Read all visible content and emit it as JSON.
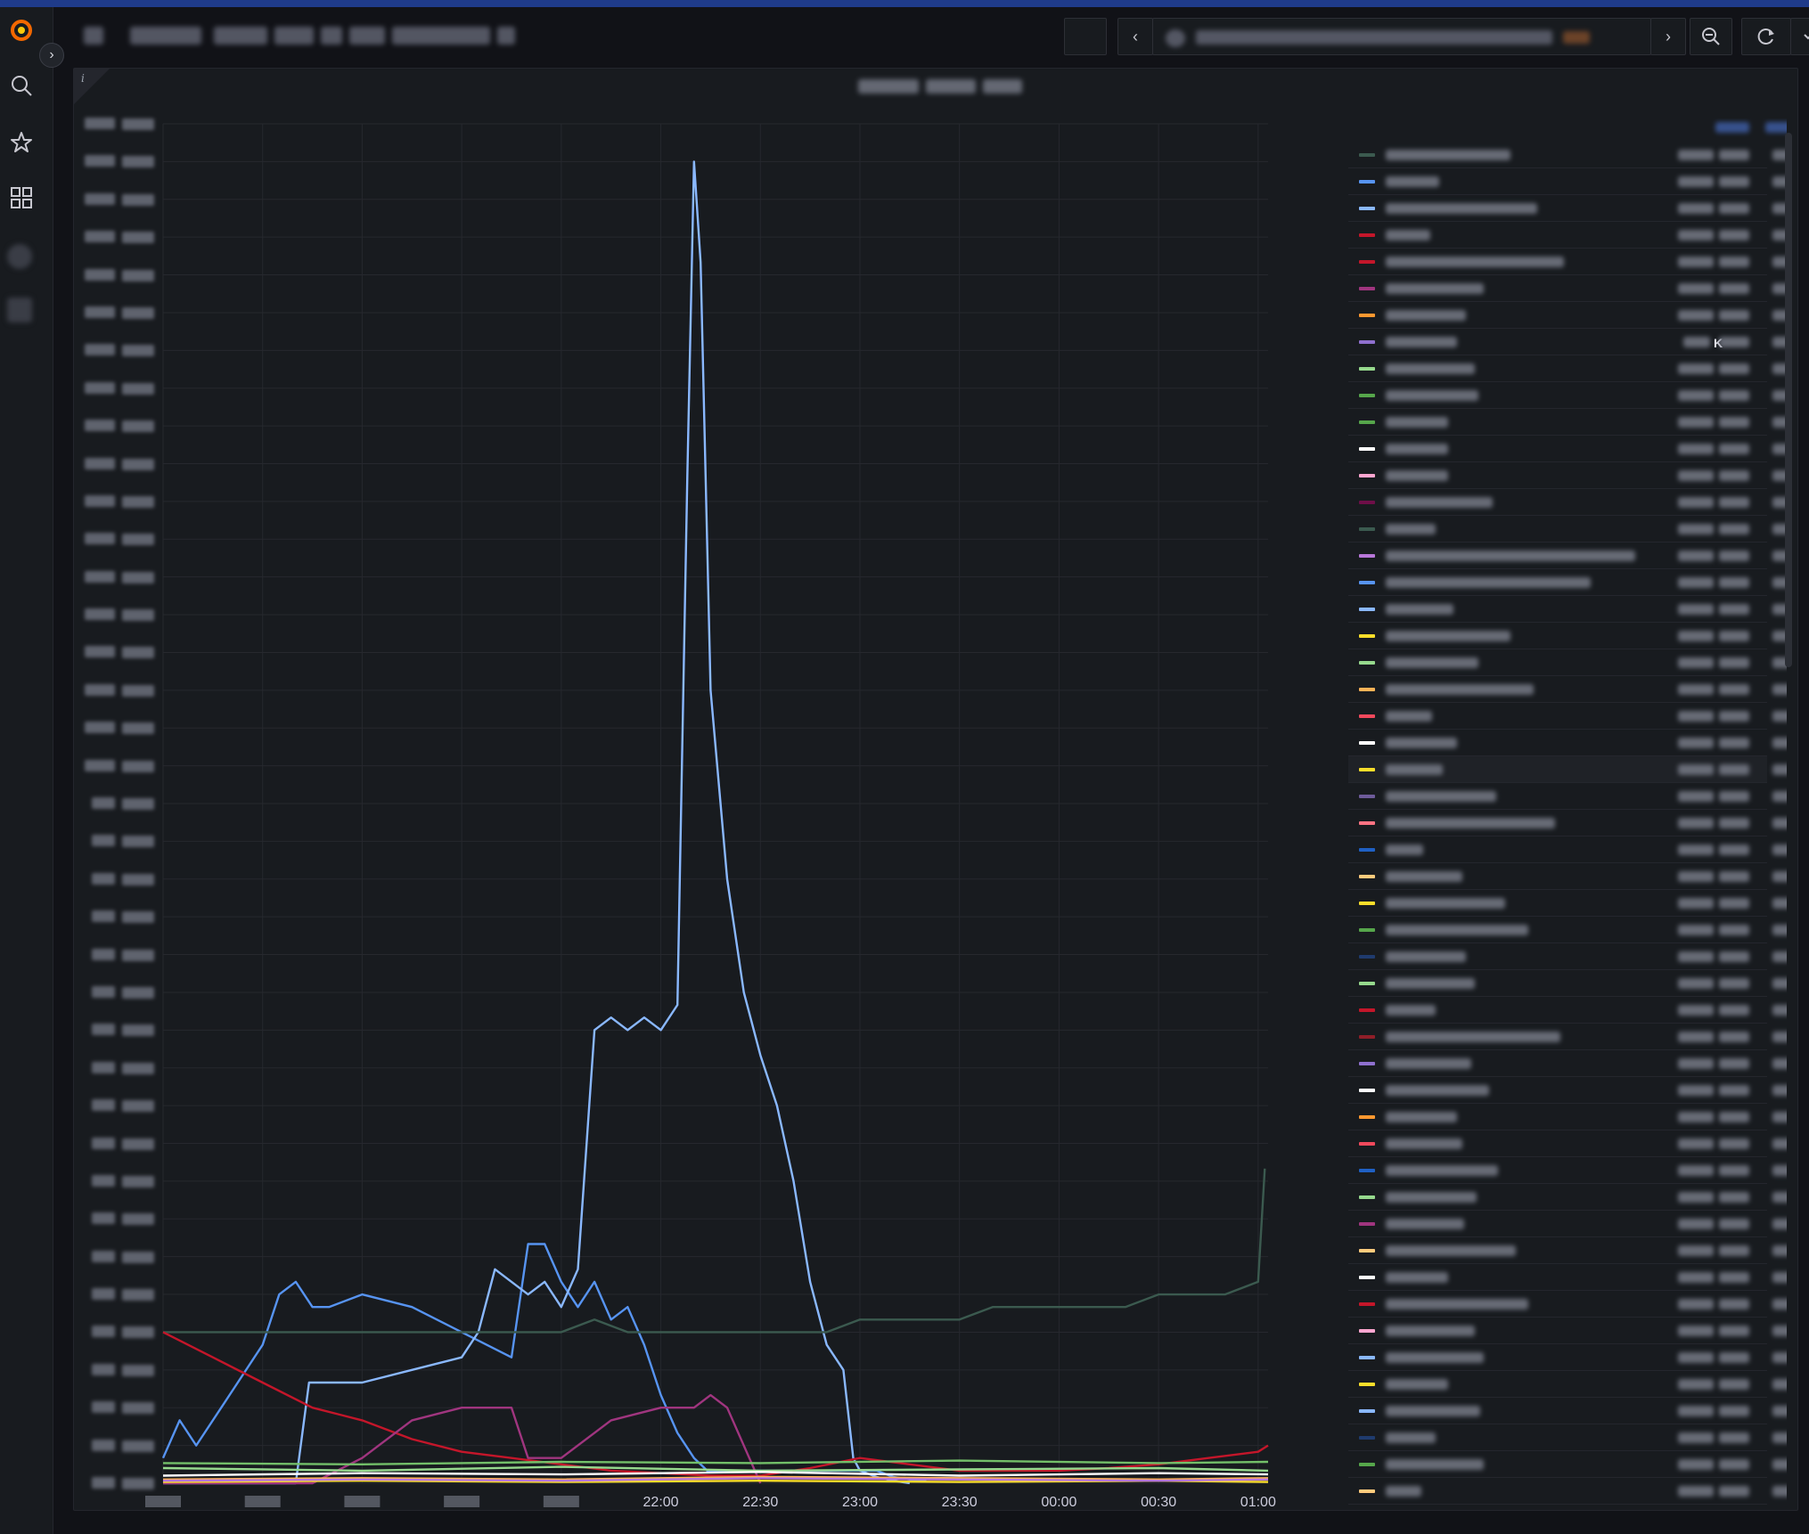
{
  "app": {
    "logo_icon": "grafana-logo-icon"
  },
  "sidebar": {
    "expand_icon": "chevron-right-icon",
    "items": [
      {
        "icon": "search-icon"
      },
      {
        "icon": "star-icon"
      },
      {
        "icon": "dashboards-grid-icon"
      }
    ]
  },
  "toolbar": {
    "nav_prev_icon": "chevron-left-icon",
    "nav_next_icon": "chevron-right-icon",
    "zoom_out_icon": "zoom-out-icon",
    "refresh_icon": "refresh-icon",
    "refresh_menu_icon": "chevron-down-icon",
    "tv_icon": "monitor-icon"
  },
  "panel": {
    "info_label": "i"
  },
  "chart_data": {
    "type": "line",
    "x_tick_labels": [
      "22:00",
      "22:30",
      "23:00",
      "23:30",
      "00:00",
      "00:30",
      "01:00"
    ],
    "x_range": [
      "19:30",
      "01:03"
    ],
    "grid": true,
    "legend_placement": "right",
    "series": [
      {
        "color": "#5794f2",
        "x": [
          "19:30",
          "19:35",
          "19:40",
          "19:50",
          "20:00",
          "20:05",
          "20:10",
          "20:15",
          "20:20",
          "20:30",
          "20:45",
          "21:00",
          "21:15",
          "21:20",
          "21:25",
          "21:30",
          "21:35",
          "21:40",
          "21:45",
          "21:50",
          "21:55",
          "22:00",
          "22:05",
          "22:10",
          "22:14",
          "22:15",
          "22:16",
          "22:17",
          "22:18",
          "22:19",
          "22:20",
          "22:25",
          "22:28",
          "22:32",
          "22:36",
          "22:40",
          "22:45",
          "22:50",
          "22:55",
          "22:57",
          "22:58",
          "23:00",
          "23:05",
          "23:10",
          "23:15",
          "23:20"
        ],
        "y": [
          2,
          5,
          3,
          7,
          11,
          15,
          16,
          14,
          14,
          15,
          14,
          12,
          10,
          19,
          19,
          16,
          14,
          16,
          13,
          14,
          11,
          7,
          4,
          2,
          1,
          1,
          1,
          1,
          1,
          1,
          1,
          1,
          1,
          1,
          1,
          1,
          1,
          1,
          1,
          1,
          1,
          1,
          1,
          0.5,
          0.3,
          0.2
        ]
      },
      {
        "color": "#8ab8ff",
        "x": [
          "19:30",
          "20:10",
          "20:14",
          "20:30",
          "20:45",
          "21:00",
          "21:05",
          "21:10",
          "21:15",
          "21:20",
          "21:25",
          "21:30",
          "21:35",
          "21:40",
          "21:45",
          "21:50",
          "21:55",
          "22:00",
          "22:05",
          "22:08",
          "22:10",
          "22:12",
          "22:15",
          "22:20",
          "22:25",
          "22:30",
          "22:35",
          "22:40",
          "22:45",
          "22:50",
          "22:55",
          "22:58",
          "23:00",
          "23:05",
          "23:10",
          "23:15"
        ],
        "y": [
          0,
          0,
          8,
          8,
          9,
          10,
          12,
          17,
          16,
          15,
          16,
          14,
          17,
          36,
          37,
          36,
          37,
          36,
          38,
          80,
          105,
          97,
          63,
          48,
          39,
          34,
          30,
          24,
          16,
          11,
          9,
          2,
          1,
          0.5,
          0.2,
          0
        ]
      },
      {
        "color": "#3b5a4f",
        "x": [
          "19:30",
          "19:40",
          "19:50",
          "20:00",
          "20:10",
          "20:20",
          "20:30",
          "20:40",
          "20:50",
          "21:00",
          "21:10",
          "21:20",
          "21:30",
          "21:40",
          "21:50",
          "22:00",
          "22:10",
          "22:20",
          "22:30",
          "22:40",
          "22:50",
          "23:00",
          "23:10",
          "23:20",
          "23:30",
          "23:40",
          "23:50",
          "00:00",
          "00:10",
          "00:20",
          "00:30",
          "00:40",
          "00:50",
          "01:00",
          "01:02"
        ],
        "y": [
          12,
          12,
          12,
          12,
          12,
          12,
          12,
          12,
          12,
          12,
          12,
          12,
          12,
          13,
          12,
          12,
          12,
          12,
          12,
          12,
          12,
          13,
          13,
          13,
          13,
          14,
          14,
          14,
          14,
          14,
          15,
          15,
          15,
          16,
          25
        ]
      },
      {
        "color": "#c4162a",
        "x": [
          "19:30",
          "19:45",
          "20:00",
          "20:15",
          "20:30",
          "20:45",
          "21:00",
          "21:15",
          "21:30",
          "21:45",
          "22:00",
          "22:15",
          "22:30",
          "22:45",
          "23:00",
          "23:15",
          "23:30",
          "23:45",
          "00:00",
          "00:15",
          "00:30",
          "00:45",
          "01:00",
          "01:03"
        ],
        "y": [
          12,
          10,
          8,
          6,
          5,
          3.5,
          2.5,
          2,
          1.5,
          1,
          0.8,
          0.6,
          0.6,
          1.2,
          2,
          1.5,
          1,
          1,
          1,
          1.2,
          1.5,
          2,
          2.5,
          3
        ]
      },
      {
        "color": "#a0357f",
        "x": [
          "19:30",
          "20:15",
          "20:30",
          "20:45",
          "21:00",
          "21:10",
          "21:15",
          "21:20",
          "21:30",
          "21:45",
          "22:00",
          "22:10",
          "22:15",
          "22:20",
          "22:30"
        ],
        "y": [
          0,
          0,
          2,
          5,
          6,
          6,
          6,
          2,
          2,
          5,
          6,
          6,
          7,
          6,
          0
        ]
      },
      {
        "color": "#ffb357",
        "x": [
          "19:30",
          "20:30",
          "21:30",
          "22:30",
          "23:30",
          "00:30",
          "01:03"
        ],
        "y": [
          0.3,
          0.4,
          0.3,
          0.5,
          0.4,
          0.3,
          0.4
        ]
      },
      {
        "color": "#fade2a",
        "x": [
          "19:30",
          "20:30",
          "21:30",
          "22:30",
          "23:30",
          "00:30",
          "01:03"
        ],
        "y": [
          0.1,
          0.2,
          0.1,
          0.2,
          0.1,
          0.2,
          0.1
        ]
      },
      {
        "color": "#96d98d",
        "x": [
          "19:30",
          "20:30",
          "21:30",
          "22:30",
          "23:30",
          "00:30",
          "01:03"
        ],
        "y": [
          1.2,
          1,
          1.3,
          1,
          1.1,
          1.2,
          1
        ]
      },
      {
        "color": "#ffffff",
        "x": [
          "19:30",
          "20:30",
          "21:30",
          "22:30",
          "23:30",
          "00:30",
          "01:03"
        ],
        "y": [
          0.6,
          0.8,
          0.7,
          0.9,
          0.6,
          0.8,
          0.7
        ]
      },
      {
        "color": "#b877d9",
        "x": [
          "19:30",
          "20:30",
          "21:30",
          "22:30",
          "23:30",
          "00:30",
          "01:03"
        ],
        "y": [
          0.2,
          0.3,
          0.2,
          0.4,
          0.3,
          0.2,
          0.3
        ]
      },
      {
        "color": "#73bf69",
        "x": [
          "19:30",
          "20:30",
          "21:30",
          "22:30",
          "23:30",
          "00:30",
          "01:03"
        ],
        "y": [
          1.6,
          1.5,
          1.7,
          1.6,
          1.8,
          1.6,
          1.7
        ]
      }
    ],
    "legend": {
      "visible_value_text": "K",
      "swatches": [
        "#3b5a4f",
        "#5794f2",
        "#8ab8ff",
        "#c4162a",
        "#c4162a",
        "#a0357f",
        "#ff9830",
        "#8f70cf",
        "#96d98d",
        "#56a64b",
        "#56a64b",
        "#ffffff",
        "#ffa6d0",
        "#6e0e48",
        "#3b5a4f",
        "#b877d9",
        "#5794f2",
        "#8ab8ff",
        "#fade2a",
        "#96d98d",
        "#ffb357",
        "#f2495c",
        "#ffffff",
        "#fade2a",
        "#6e5b9a",
        "#ff7383",
        "#1f60c4",
        "#ffcb7d",
        "#fade2a",
        "#56a64b",
        "#1f3b6e",
        "#96d98d",
        "#c4162a",
        "#8f1e28",
        "#8f70cf",
        "#ffffff",
        "#ff9830",
        "#f2495c",
        "#1f60c4",
        "#96d98d",
        "#a0357f",
        "#ffcb7d",
        "#ffffff",
        "#c4162a",
        "#ffa6d0",
        "#8ab8ff",
        "#fade2a",
        "#8ab8ff",
        "#1f3b6e",
        "#56a64b",
        "#ffcb7d"
      ]
    }
  }
}
